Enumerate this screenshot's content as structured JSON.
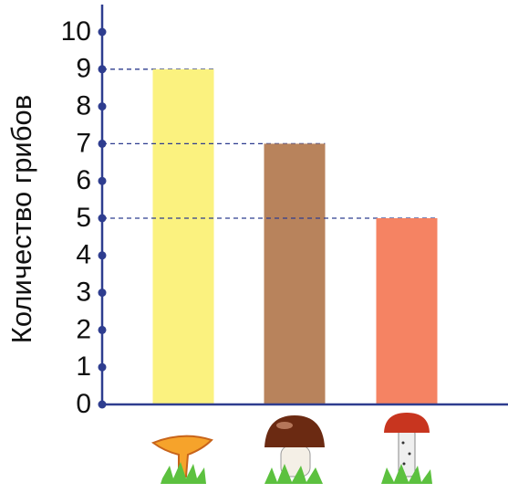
{
  "chart_data": {
    "type": "bar",
    "y_label": "Количество грибов",
    "categories": [
      null,
      null,
      null
    ],
    "values": [
      9,
      7,
      5
    ],
    "colors": [
      "#fbf27f",
      "#b8835c",
      "#f58363"
    ],
    "ylim": [
      0,
      10
    ],
    "yticks": [
      0,
      1,
      2,
      3,
      4,
      5,
      6,
      7,
      8,
      9,
      10
    ],
    "grid": false
  }
}
